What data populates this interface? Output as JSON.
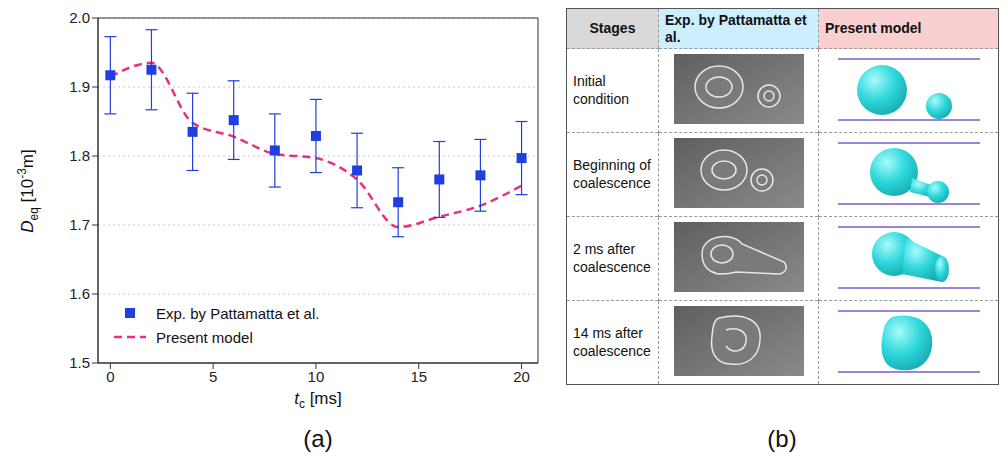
{
  "chart_data": {
    "type": "line",
    "xlabel": [
      {
        "text": "t"
      },
      {
        "sub": "c"
      },
      {
        "text": " [ms]"
      }
    ],
    "ylabel": [
      {
        "text": "D"
      },
      {
        "sub": "eq"
      },
      {
        "text": " [10"
      },
      {
        "sup": "-3"
      },
      {
        "text": "m]"
      }
    ],
    "x": [
      0,
      2,
      4,
      6,
      8,
      10,
      12,
      14,
      16,
      18,
      20
    ],
    "series": [
      {
        "name": "Exp. by Pattamatta et al.",
        "type": "scatter",
        "marker": "square",
        "color": "#1f3fe0",
        "values": [
          1.917,
          1.925,
          1.835,
          1.852,
          1.808,
          1.829,
          1.779,
          1.733,
          1.766,
          1.772,
          1.797
        ],
        "errors": [
          0.056,
          0.058,
          0.056,
          0.057,
          0.053,
          0.053,
          0.054,
          0.05,
          0.055,
          0.052,
          0.053
        ]
      },
      {
        "name": "Present model",
        "type": "line",
        "line_style": "dashed",
        "color": "#e8307f",
        "values": [
          1.915,
          1.935,
          1.848,
          1.828,
          1.803,
          1.797,
          1.766,
          1.697,
          1.712,
          1.728,
          1.757
        ]
      }
    ],
    "xlim": [
      -0.6,
      20.8
    ],
    "xticks": [
      0,
      5,
      10,
      15,
      20
    ],
    "ylim": [
      1.5,
      2.0
    ],
    "yticks": [
      1.5,
      1.6,
      1.7,
      1.8,
      1.9,
      {
        "value": 2.0,
        "label": "2.0"
      }
    ],
    "grid": true,
    "legend": "lower left"
  },
  "panel_labels": [
    "(a)",
    "(b)"
  ],
  "table": {
    "header": [
      "Stages",
      "Exp. by Pattamatta et al.",
      "Present model"
    ],
    "rows": [
      "Initial condition",
      "Beginning of coalescence",
      "2 ms after coalescence",
      "14 ms after coalescence"
    ]
  }
}
